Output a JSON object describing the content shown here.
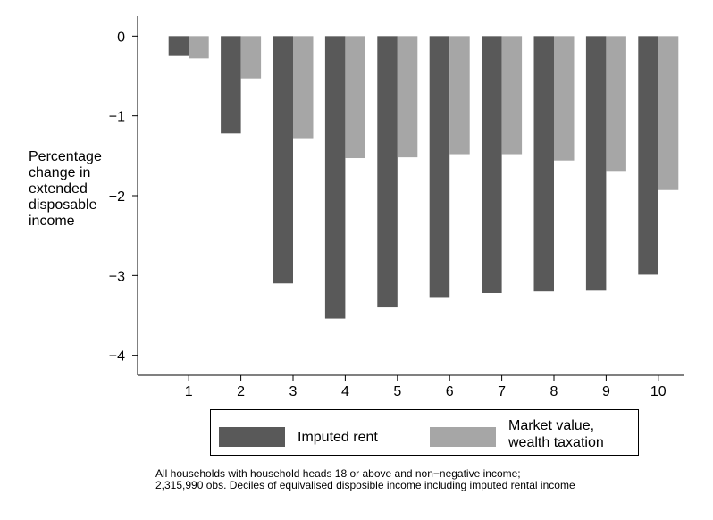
{
  "chart_data": {
    "type": "bar",
    "title": "",
    "ylabel_lines": [
      "Percentage",
      "change in",
      "extended",
      "disposable",
      "income"
    ],
    "xlabel": "",
    "categories": [
      "1",
      "2",
      "3",
      "4",
      "5",
      "6",
      "7",
      "8",
      "9",
      "10"
    ],
    "series": [
      {
        "name": "Imputed rent",
        "color": "#595959",
        "values": [
          -0.25,
          -1.22,
          -3.1,
          -3.54,
          -3.4,
          -3.27,
          -3.22,
          -3.2,
          -3.19,
          -2.99
        ]
      },
      {
        "name_lines": [
          "Market value,",
          "wealth taxation"
        ],
        "color": "#a6a6a6",
        "values": [
          -0.28,
          -0.53,
          -1.29,
          -1.53,
          -1.52,
          -1.48,
          -1.48,
          -1.56,
          -1.69,
          -1.93
        ]
      }
    ],
    "ylim": [
      -4.25,
      0.25
    ],
    "yticks": [
      0,
      -1,
      -2,
      -3,
      -4
    ],
    "ytick_labels": [
      "0",
      "−1",
      "−2",
      "−3",
      "−4"
    ],
    "grid": false,
    "legend_position": "bottom"
  },
  "notes": [
    "All households with household heads 18 or above and non−negative income;",
    "2,315,990 obs. Deciles of equivalised disposible income including imputed rental income"
  ]
}
